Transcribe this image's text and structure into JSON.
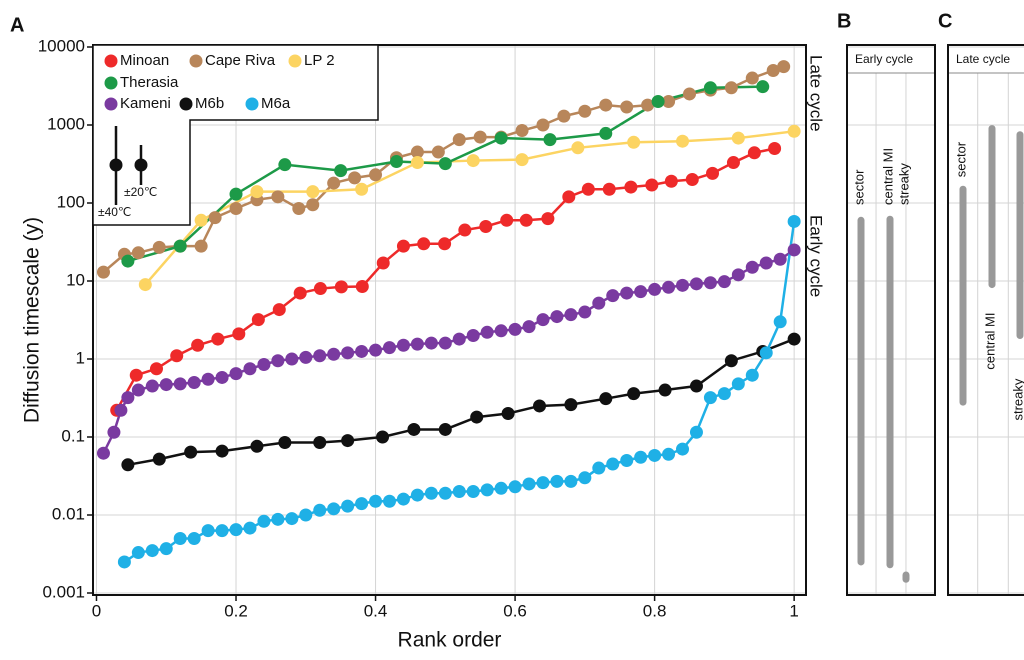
{
  "chart_data": [
    {
      "type": "line",
      "panel": "A",
      "xlabel": "Rank order",
      "ylabel": "Diffusion timescale (y)",
      "xlim": [
        -0.005,
        1.017
      ],
      "xticks": [
        0,
        0.2,
        0.4,
        0.6,
        0.8,
        1
      ],
      "ylim": [
        0.001,
        10000
      ],
      "yticks": [
        0.001,
        0.01,
        0.1,
        1,
        10,
        100,
        1000,
        10000
      ],
      "log_y": true,
      "grid": true,
      "legend": "upper left",
      "annotations": [
        "Late cycle",
        "Early cycle",
        "±40℃",
        "±20℃"
      ],
      "series": [
        {
          "name": "Minoan",
          "color": "#ee2a2a",
          "x": [
            0.029,
            0.057,
            0.086,
            0.115,
            0.145,
            0.174,
            0.204,
            0.232,
            0.262,
            0.292,
            0.321,
            0.351,
            0.381,
            0.411,
            0.44,
            0.469,
            0.499,
            0.528,
            0.558,
            0.588,
            0.616,
            0.647,
            0.677,
            0.705,
            0.735,
            0.766,
            0.796,
            0.824,
            0.854,
            0.883,
            0.913,
            0.943,
            0.972
          ],
          "values": [
            0.22,
            0.62,
            0.75,
            1.1,
            1.5,
            1.8,
            2.1,
            3.2,
            4.3,
            7,
            8,
            8.4,
            8.5,
            17,
            28,
            30,
            30,
            45,
            50,
            60,
            60,
            63,
            120,
            150,
            150,
            160,
            170,
            190,
            200,
            240,
            330,
            440,
            500
          ]
        },
        {
          "name": "Cape Riva",
          "color": "#b8865a",
          "x": [
            0.01,
            0.04,
            0.06,
            0.09,
            0.12,
            0.15,
            0.17,
            0.2,
            0.23,
            0.26,
            0.29,
            0.31,
            0.34,
            0.37,
            0.4,
            0.43,
            0.46,
            0.49,
            0.52,
            0.55,
            0.58,
            0.61,
            0.64,
            0.67,
            0.7,
            0.73,
            0.76,
            0.79,
            0.82,
            0.85,
            0.88,
            0.91,
            0.94,
            0.97,
            0.985
          ],
          "values": [
            13,
            22,
            23,
            27,
            28,
            28,
            65,
            85,
            110,
            120,
            85,
            95,
            180,
            210,
            230,
            380,
            450,
            450,
            650,
            700,
            700,
            850,
            1000,
            1300,
            1500,
            1800,
            1700,
            1800,
            2000,
            2500,
            2800,
            3000,
            4000,
            5000,
            5600
          ]
        },
        {
          "name": "LP 2",
          "color": "#fcd462",
          "x": [
            0.07,
            0.15,
            0.23,
            0.31,
            0.38,
            0.46,
            0.54,
            0.61,
            0.69,
            0.77,
            0.84,
            0.92,
            1.0
          ],
          "values": [
            9,
            60,
            140,
            140,
            150,
            330,
            350,
            360,
            510,
            600,
            620,
            680,
            830
          ]
        },
        {
          "name": "Therasia",
          "color": "#1d9a48",
          "x": [
            0.045,
            0.12,
            0.2,
            0.27,
            0.35,
            0.43,
            0.5,
            0.58,
            0.65,
            0.73,
            0.805,
            0.88,
            0.955
          ],
          "values": [
            18,
            28,
            130,
            310,
            260,
            340,
            320,
            680,
            650,
            780,
            2000,
            3000,
            3100
          ]
        },
        {
          "name": "Kameni",
          "color": "#7a3aa0",
          "x": [
            0.01,
            0.025,
            0.035,
            0.045,
            0.06,
            0.08,
            0.1,
            0.12,
            0.14,
            0.16,
            0.18,
            0.2,
            0.22,
            0.24,
            0.26,
            0.28,
            0.3,
            0.32,
            0.34,
            0.36,
            0.38,
            0.4,
            0.42,
            0.44,
            0.46,
            0.48,
            0.5,
            0.52,
            0.54,
            0.56,
            0.58,
            0.6,
            0.62,
            0.64,
            0.66,
            0.68,
            0.7,
            0.72,
            0.74,
            0.76,
            0.78,
            0.8,
            0.82,
            0.84,
            0.86,
            0.88,
            0.9,
            0.92,
            0.94,
            0.96,
            0.98,
            1.0
          ],
          "values": [
            0.062,
            0.115,
            0.22,
            0.32,
            0.4,
            0.45,
            0.47,
            0.48,
            0.5,
            0.55,
            0.58,
            0.65,
            0.75,
            0.85,
            0.95,
            1.0,
            1.05,
            1.1,
            1.15,
            1.2,
            1.25,
            1.3,
            1.4,
            1.5,
            1.55,
            1.6,
            1.6,
            1.8,
            2.0,
            2.2,
            2.3,
            2.4,
            2.6,
            3.2,
            3.5,
            3.7,
            4.0,
            5.2,
            6.5,
            7.0,
            7.3,
            7.8,
            8.3,
            8.8,
            9.2,
            9.5,
            9.8,
            12,
            15,
            17,
            19,
            25
          ]
        },
        {
          "name": "M6b",
          "color": "#111111",
          "x": [
            0.045,
            0.09,
            0.135,
            0.18,
            0.23,
            0.27,
            0.32,
            0.36,
            0.41,
            0.455,
            0.5,
            0.545,
            0.59,
            0.635,
            0.68,
            0.73,
            0.77,
            0.815,
            0.86,
            0.91,
            0.955,
            1.0
          ],
          "values": [
            0.044,
            0.052,
            0.064,
            0.066,
            0.076,
            0.085,
            0.085,
            0.09,
            0.1,
            0.125,
            0.125,
            0.18,
            0.2,
            0.25,
            0.26,
            0.31,
            0.36,
            0.4,
            0.45,
            0.95,
            1.25,
            1.8
          ]
        },
        {
          "name": "M6a",
          "color": "#1fb0e6",
          "x": [
            0.04,
            0.06,
            0.08,
            0.1,
            0.12,
            0.14,
            0.16,
            0.18,
            0.2,
            0.22,
            0.24,
            0.26,
            0.28,
            0.3,
            0.32,
            0.34,
            0.36,
            0.38,
            0.4,
            0.42,
            0.44,
            0.46,
            0.48,
            0.5,
            0.52,
            0.54,
            0.56,
            0.58,
            0.6,
            0.62,
            0.64,
            0.66,
            0.68,
            0.7,
            0.72,
            0.74,
            0.76,
            0.78,
            0.8,
            0.82,
            0.84,
            0.86,
            0.88,
            0.9,
            0.92,
            0.94,
            0.96,
            0.98,
            1.0
          ],
          "values": [
            0.0025,
            0.0033,
            0.0035,
            0.0037,
            0.005,
            0.005,
            0.0063,
            0.0063,
            0.0065,
            0.0068,
            0.0083,
            0.0088,
            0.009,
            0.01,
            0.0115,
            0.012,
            0.013,
            0.014,
            0.015,
            0.015,
            0.016,
            0.018,
            0.019,
            0.019,
            0.02,
            0.02,
            0.021,
            0.022,
            0.023,
            0.025,
            0.026,
            0.027,
            0.027,
            0.03,
            0.04,
            0.045,
            0.05,
            0.055,
            0.058,
            0.06,
            0.07,
            0.115,
            0.32,
            0.36,
            0.48,
            0.62,
            1.2,
            3.0,
            58
          ]
        }
      ]
    },
    {
      "type": "range",
      "panel": "B",
      "title": "Early cycle",
      "ylim": [
        0.001,
        10000
      ],
      "yticks": [
        0.001,
        0.01,
        0.1,
        1,
        10,
        100,
        1000,
        10000
      ],
      "log_y": true,
      "grid": true,
      "color": "#999999",
      "series": [
        {
          "name": "sector",
          "values": [
            0.0025,
            60
          ]
        },
        {
          "name": "central MI",
          "values": [
            0.0023,
            62
          ]
        },
        {
          "name": "streaky",
          "values": [
            0.0015,
            0.0017
          ]
        }
      ]
    },
    {
      "type": "range",
      "panel": "C",
      "title": "Late cycle",
      "ylim": [
        0.001,
        10000
      ],
      "yticks": [
        0.001,
        0.01,
        0.1,
        1,
        10,
        100,
        1000,
        10000
      ],
      "log_y": true,
      "grid": true,
      "color": "#999999",
      "series": [
        {
          "name": "sector",
          "values": [
            0.28,
            150
          ]
        },
        {
          "name": "central MI",
          "values": [
            9,
            900
          ]
        },
        {
          "name": "streaky",
          "values": [
            2,
            750
          ]
        }
      ]
    }
  ]
}
